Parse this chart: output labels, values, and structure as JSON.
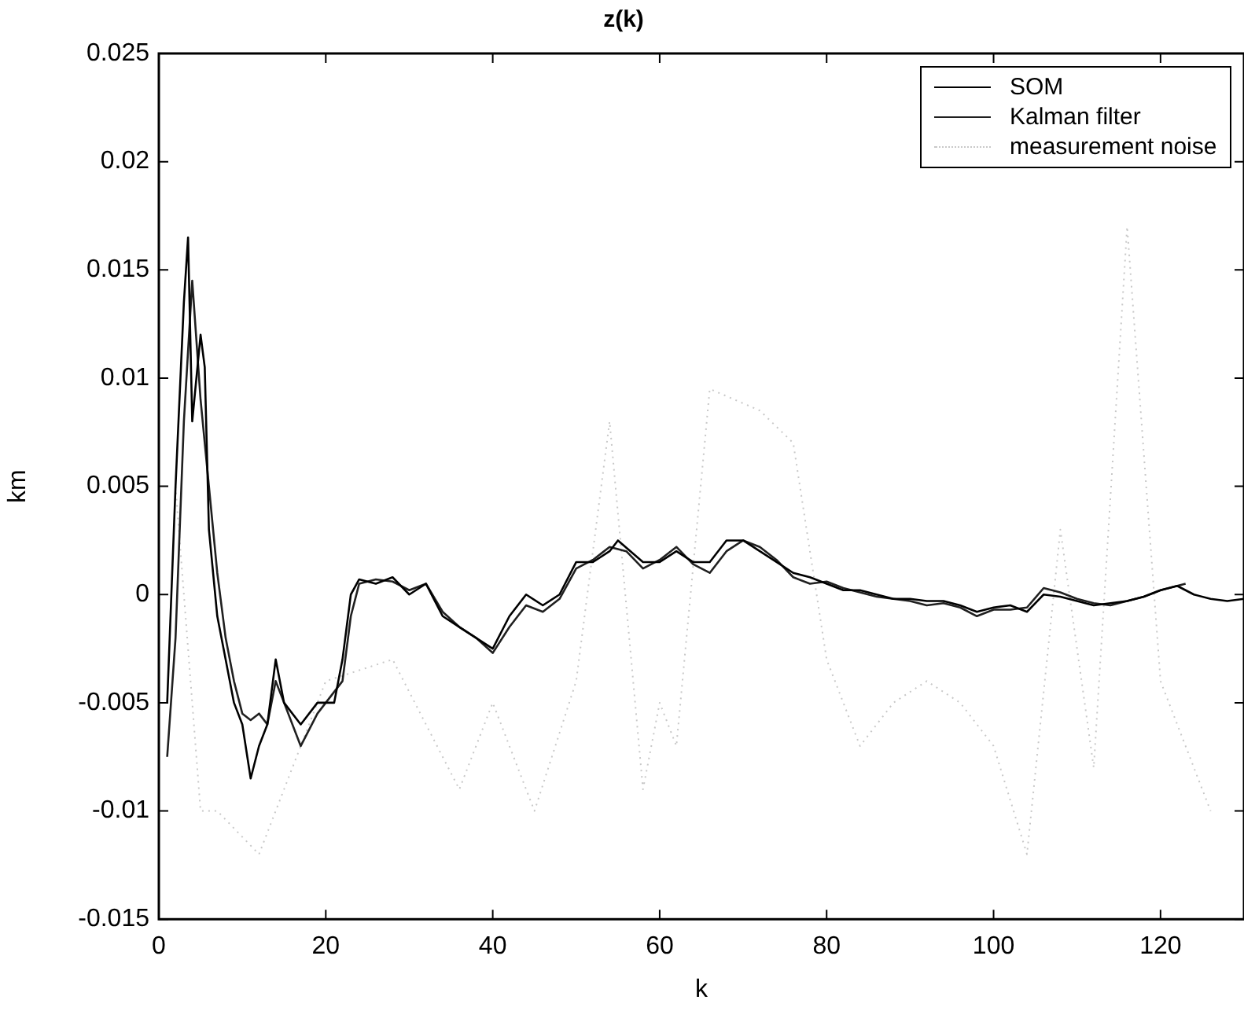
{
  "chart_data": {
    "type": "line",
    "title": "z(k)",
    "xlabel": "k",
    "ylabel": "km",
    "xlim": [
      0,
      130
    ],
    "ylim": [
      -0.015,
      0.025
    ],
    "xticks": [
      0,
      20,
      40,
      60,
      80,
      100,
      120
    ],
    "yticks": [
      -0.015,
      -0.01,
      -0.005,
      0,
      0.005,
      0.01,
      0.015,
      0.02,
      0.025
    ],
    "grid": false,
    "legend": "top right",
    "marker": "none",
    "series": [
      {
        "name": "SOM",
        "color": "#000000",
        "line_style": "solid",
        "x": [
          1,
          2,
          3,
          3.5,
          4,
          5,
          5.5,
          6,
          7,
          8,
          9,
          10,
          11,
          12,
          13,
          14,
          15,
          17,
          19,
          21,
          22,
          23,
          24,
          26,
          28,
          30,
          32,
          34,
          36,
          38,
          40,
          42,
          44,
          46,
          48,
          50,
          52,
          54,
          55,
          58,
          60,
          62,
          64,
          66,
          68,
          70,
          72,
          74,
          76,
          78,
          80,
          82,
          84,
          86,
          88,
          90,
          92,
          94,
          96,
          98,
          100,
          102,
          104,
          106,
          108,
          110,
          112,
          114,
          116,
          118,
          120,
          122,
          124,
          126,
          128,
          130
        ],
        "values": [
          -0.005,
          0.005,
          0.0135,
          0.0165,
          0.008,
          0.012,
          0.0105,
          0.003,
          -0.001,
          -0.003,
          -0.005,
          -0.006,
          -0.0085,
          -0.007,
          -0.006,
          -0.003,
          -0.005,
          -0.006,
          -0.005,
          -0.005,
          -0.003,
          0,
          0.0007,
          0.0005,
          0.0008,
          0,
          0.0005,
          -0.001,
          -0.0015,
          -0.002,
          -0.0025,
          -0.001,
          0,
          -0.0005,
          0,
          0.0015,
          0.0015,
          0.002,
          0.0025,
          0.0015,
          0.0015,
          0.002,
          0.0015,
          0.0015,
          0.0025,
          0.0025,
          0.002,
          0.0015,
          0.001,
          0.0008,
          0.0005,
          0.0002,
          0.0002,
          0,
          -0.0002,
          -0.0002,
          -0.0003,
          -0.0003,
          -0.0005,
          -0.0008,
          -0.0006,
          -0.0005,
          -0.0008,
          0,
          -0.0001,
          -0.0003,
          -0.0005,
          -0.0004,
          -0.0003,
          -0.0001,
          0.0002,
          0.0004,
          0,
          -0.0002,
          -0.0003,
          -0.0002
        ]
      },
      {
        "name": "Kalman filter",
        "color": "#202020",
        "line_style": "solid",
        "x": [
          1,
          2,
          3,
          4,
          5,
          6,
          7,
          8,
          9,
          10,
          11,
          12,
          13,
          14,
          15,
          17,
          19,
          20,
          22,
          23,
          24,
          26,
          28,
          30,
          32,
          34,
          36,
          38,
          40,
          42,
          44,
          46,
          48,
          50,
          52,
          54,
          56,
          58,
          60,
          62,
          64,
          66,
          68,
          70,
          72,
          74,
          76,
          78,
          80,
          82,
          84,
          86,
          88,
          90,
          92,
          94,
          96,
          98,
          100,
          102,
          104,
          106,
          108,
          110,
          112,
          114,
          116,
          118,
          120,
          123
        ],
        "values": [
          -0.0075,
          -0.002,
          0.008,
          0.0145,
          0.009,
          0.005,
          0.001,
          -0.002,
          -0.004,
          -0.0055,
          -0.0058,
          -0.0055,
          -0.006,
          -0.004,
          -0.005,
          -0.007,
          -0.0055,
          -0.005,
          -0.004,
          -0.001,
          0.0005,
          0.0007,
          0.0006,
          0.0002,
          0.0005,
          -0.0008,
          -0.0015,
          -0.002,
          -0.0027,
          -0.0015,
          -0.0005,
          -0.0008,
          -0.0002,
          0.0012,
          0.0016,
          0.0022,
          0.002,
          0.0012,
          0.0016,
          0.0022,
          0.0014,
          0.001,
          0.002,
          0.0025,
          0.0022,
          0.0016,
          0.0008,
          0.0005,
          0.0006,
          0.0003,
          0.0001,
          -0.0001,
          -0.0002,
          -0.0003,
          -0.0005,
          -0.0004,
          -0.0006,
          -0.001,
          -0.0007,
          -0.0007,
          -0.0006,
          0.0003,
          0.0001,
          -0.0002,
          -0.0004,
          -0.0005,
          -0.0003,
          -0.0001,
          0.0002,
          0.0005
        ]
      },
      {
        "name": "measurement noise",
        "color": "#c8c8c8",
        "line_style": "dotted",
        "x": [
          2,
          5,
          7,
          12,
          20,
          28,
          36,
          40,
          45,
          50,
          54,
          58,
          60,
          62,
          66,
          72,
          76,
          80,
          84,
          88,
          92,
          96,
          100,
          104,
          108,
          112,
          116,
          120,
          126
        ],
        "values": [
          0.005,
          -0.01,
          -0.01,
          -0.012,
          -0.004,
          -0.003,
          -0.009,
          -0.005,
          -0.01,
          -0.004,
          0.008,
          -0.009,
          -0.005,
          -0.007,
          0.0095,
          0.0085,
          0.007,
          -0.003,
          -0.007,
          -0.005,
          -0.004,
          -0.005,
          -0.007,
          -0.012,
          0.003,
          -0.008,
          0.017,
          -0.004,
          -0.01
        ]
      }
    ]
  }
}
